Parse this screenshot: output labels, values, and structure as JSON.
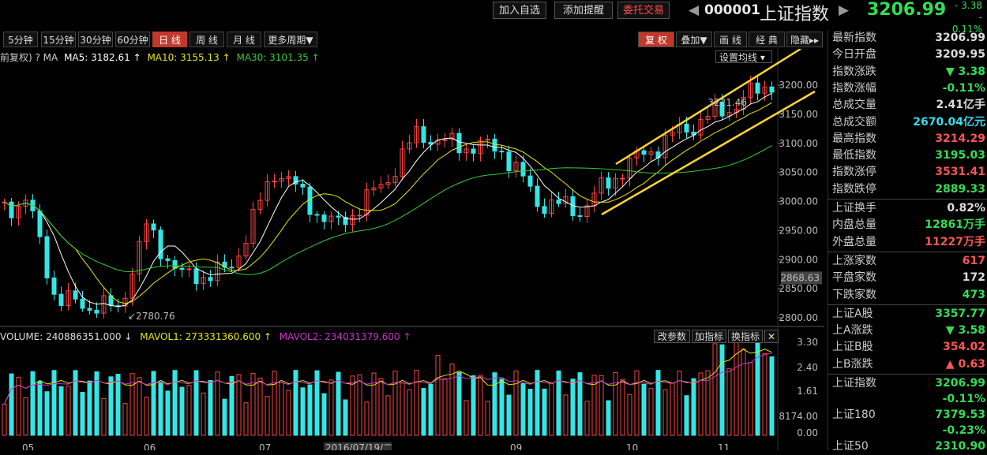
{
  "header": {
    "buttons": [
      "加入自选",
      "添加提醒",
      "委托交易"
    ],
    "code": "000001",
    "name": "上证指数",
    "price": "3206.99",
    "change": "- 3.38",
    "change_pct": "- 0.11%"
  },
  "periods": [
    "5分钟",
    "15分钟",
    "30分钟",
    "60分钟",
    "日 线",
    "周 线",
    "月 线",
    "更多周期▼"
  ],
  "active_period": "日 线",
  "right_buttons": [
    "复 权",
    "叠加▼",
    "画 线",
    "经 典",
    "隐藏▸▸"
  ],
  "ma_bar": {
    "prefix": "前复权) ? MA",
    "ma5": "MA5: 3182.61 ↑",
    "ma10": "MA10: 3155.13 ↑",
    "ma30": "MA30: 3101.35 ↑",
    "setting": "设置均线 ▾"
  },
  "annotations": {
    "high": "3221.46",
    "low": "2780.76",
    "current": "2868.63"
  },
  "price_axis": [
    "3200.00",
    "3150.00",
    "3100.00",
    "3050.00",
    "3000.00",
    "2950.00",
    "2900.00",
    "2850.00",
    "2800.00"
  ],
  "volume_bar": {
    "volume": "VOLUME: 240886351.000 ↓",
    "mavol1": "MAVOL1: 273331360.600 ↑",
    "mavol2": "MAVOL2: 234031379.600 ↑",
    "buttons": [
      "改参数",
      "加指标",
      "换指标",
      "✕"
    ]
  },
  "volume_axis": [
    "3.30",
    "2.40",
    "1.61",
    "8174.00",
    "0.00"
  ],
  "x_axis": [
    "05",
    "06",
    "07",
    "2016/07/19/二",
    "09",
    "10",
    "11"
  ],
  "quotes": [
    {
      "k": "最新指数",
      "v": "3206.99",
      "c": "#dddddd"
    },
    {
      "k": "今日开盘",
      "v": "3209.95",
      "c": "#dddddd"
    },
    {
      "k": "指数涨跌",
      "v": "▼ 3.38",
      "c": "#33dd55"
    },
    {
      "k": "指数涨幅",
      "v": "-0.11%",
      "c": "#33dd55"
    },
    {
      "k": "总成交量",
      "v": "2.41亿手",
      "c": "#dddddd"
    },
    {
      "k": "总成交额",
      "v": "2670.04亿元",
      "c": "#33ddee"
    },
    {
      "k": "最高指数",
      "v": "3214.29",
      "c": "#ff5555"
    },
    {
      "k": "最低指数",
      "v": "3195.03",
      "c": "#33dd55"
    },
    {
      "k": "指数涨停",
      "v": "3531.41",
      "c": "#ff5555"
    },
    {
      "k": "指数跌停",
      "v": "2889.33",
      "c": "#33dd55"
    }
  ],
  "quotes2": [
    {
      "k": "上证换手",
      "v": "0.82%",
      "c": "#dddddd"
    },
    {
      "k": "内盘总量",
      "v": "12861万手",
      "c": "#33dd55"
    },
    {
      "k": "外盘总量",
      "v": "11227万手",
      "c": "#ff5555"
    }
  ],
  "quotes3": [
    {
      "k": "上涨家数",
      "v": "617",
      "c": "#ff5555"
    },
    {
      "k": "平盘家数",
      "v": "172",
      "c": "#dddddd"
    },
    {
      "k": "下跌家数",
      "v": "473",
      "c": "#33dd55"
    }
  ],
  "quotes4": [
    {
      "k": "上证A股",
      "v": "3357.77",
      "c": "#33dd55"
    },
    {
      "k": "上A涨跌",
      "v": "▼ 3.58",
      "c": "#33dd55"
    },
    {
      "k": "上证B股",
      "v": "354.02",
      "c": "#ff5555"
    },
    {
      "k": "上B涨跌",
      "v": "▲ 0.63",
      "c": "#ff5555"
    }
  ],
  "quotes5": [
    {
      "k": "上证指数",
      "v": "3206.99",
      "c": "#33dd55"
    },
    {
      "k": "",
      "v": "-0.11%",
      "c": "#33dd55"
    },
    {
      "k": "上证180",
      "v": "7379.53",
      "c": "#33dd55"
    },
    {
      "k": "",
      "v": "-0.23%",
      "c": "#33dd55"
    },
    {
      "k": "上证50",
      "v": "2310.90",
      "c": "#33dd55"
    }
  ],
  "colors": {
    "up": "#ff4444",
    "down": "#33e6e6",
    "ma5": "#ffffff",
    "ma10": "#e6e600",
    "ma30": "#33cc33",
    "trend": "#ffd633",
    "mavol2": "#cc33cc"
  }
}
